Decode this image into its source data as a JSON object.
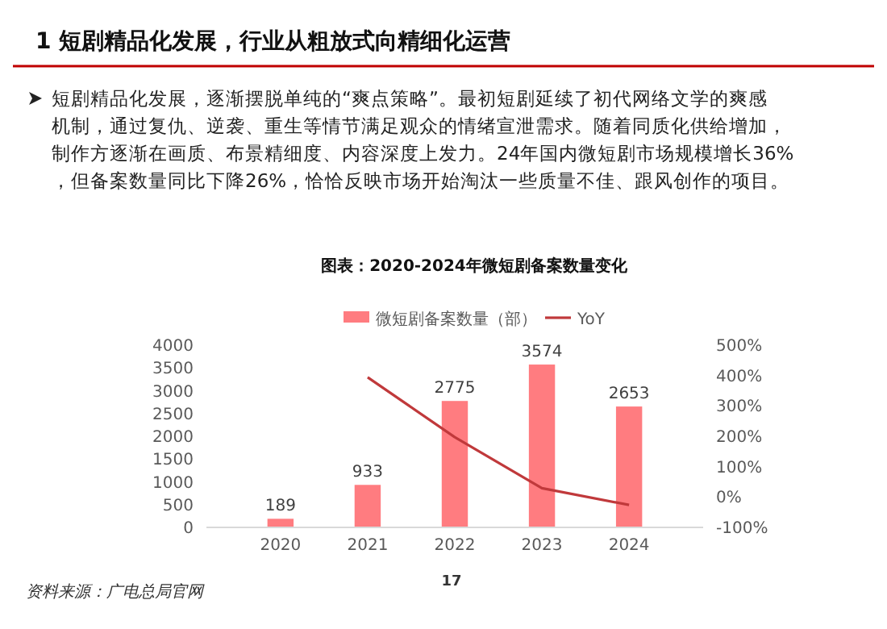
{
  "chart_data": {
    "type": "bar",
    "title": "图表：2020-2024年微短剧备案数量变化",
    "annotations": [
      "1 短剧精品化发展，行业从粗放式向精细化运营",
      "短剧精品化发展，逐渐摆脱单纯的“爽点策略”。最初短剧延续了初代网络文学的爽感机制，通过复仇、逆袭、重生等情节满足观众的情绪宣泄需求。随着同质化供给增加，制作方逐渐在画质、布景精细度、内容深度上发力。24年国内微短剧市场规模增长36%，但备案数量同比下降26%，恰恰反映市场开始淘汰一些质量不佳、跟风创作的项目。",
      "资料来源：广电总局官网",
      "17"
    ],
    "categories": [
      "2020",
      "2021",
      "2022",
      "2023",
      "2024"
    ],
    "series": [
      {
        "name": "微短剧备案数量（部）",
        "color": "#ff7c80",
        "values": [
          189,
          933,
          2775,
          3574,
          2653
        ],
        "value_labels": [
          "189",
          "933",
          "2775",
          "3574",
          "2653"
        ]
      },
      {
        "name": "YoY",
        "type": "line",
        "axis": "y2",
        "color": "#c0393b",
        "values": [
          null,
          394,
          197,
          29,
          -26
        ]
      }
    ],
    "ylim": [
      0,
      4000
    ],
    "yticks": [
      0,
      500,
      1000,
      1500,
      2000,
      2500,
      3000,
      3500,
      4000
    ],
    "y2lim": [
      -100,
      500
    ],
    "y2ticks": [
      {
        "value": -100,
        "label": "-100%"
      },
      {
        "value": 0,
        "label": "0%"
      },
      {
        "value": 100,
        "label": "100%"
      },
      {
        "value": 200,
        "label": "200%"
      },
      {
        "value": 300,
        "label": "300%"
      },
      {
        "value": 400,
        "label": "400%"
      },
      {
        "value": 500,
        "label": "500%"
      }
    ],
    "legend": "top",
    "grid": false,
    "marker": "none"
  }
}
